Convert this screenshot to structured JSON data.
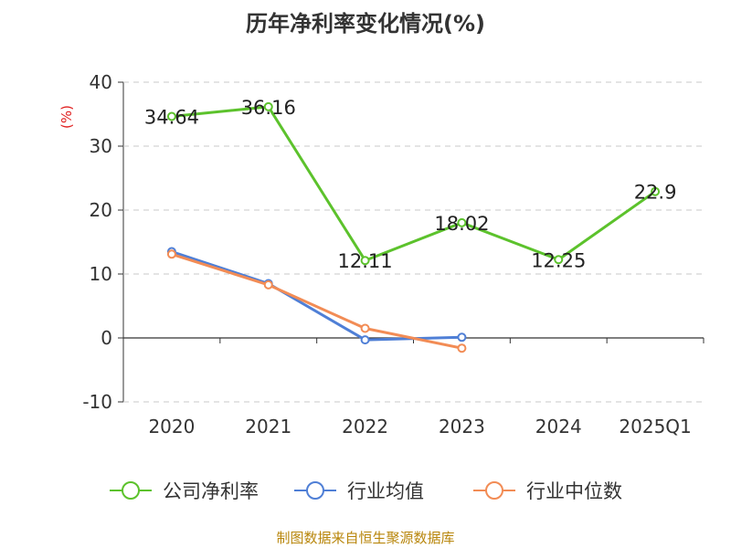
{
  "title": "历年净利率变化情况(%)",
  "source": "制图数据来自恒生聚源数据库",
  "chart_data": {
    "type": "line",
    "title": "历年净利率变化情况(%)",
    "ylabel": "(%)",
    "ylim": [
      -10,
      40
    ],
    "yticks": [
      -10,
      0,
      10,
      20,
      30,
      40
    ],
    "grid": true,
    "legend_position": "bottom",
    "categories": [
      "2020",
      "2021",
      "2022",
      "2023",
      "2024",
      "2025Q1"
    ],
    "series": [
      {
        "name": "公司净利率",
        "color": "#5cc22c",
        "values": [
          34.64,
          36.16,
          12.11,
          18.02,
          12.25,
          22.9
        ],
        "labels": [
          "34.64",
          "36.16",
          "12.11",
          "18.02",
          "12.25",
          "22.9"
        ]
      },
      {
        "name": "行业均值",
        "color": "#4f7fd6",
        "values": [
          13.5,
          8.5,
          -0.3,
          0.1,
          null,
          null
        ],
        "labels": null
      },
      {
        "name": "行业中位数",
        "color": "#f28c55",
        "values": [
          13.1,
          8.3,
          1.5,
          -1.6,
          null,
          null
        ],
        "labels": null
      }
    ]
  }
}
